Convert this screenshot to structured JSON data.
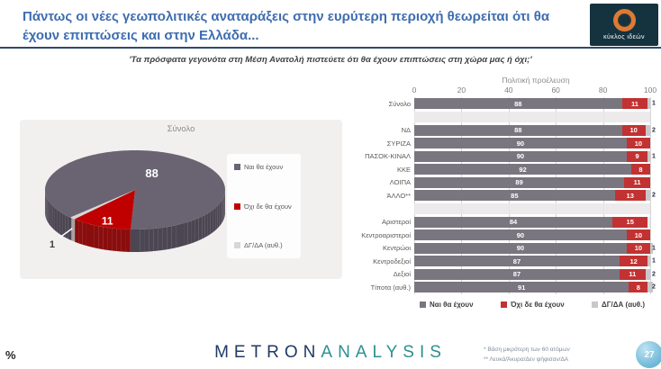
{
  "header": {
    "title": "Πάντως οι νέες γεωπολιτικές αναταράξεις στην ευρύτερη περιοχή θεωρείται ότι θα έχουν επιπτώσεις και στην Ελλάδα...",
    "logo": {
      "text": "κύκλος ιδεών"
    }
  },
  "question": "'Τα πρόσφατα γεγονότα στη Μέση Ανατολή πιστεύετε ότι θα έχουν επιπτώσεις στη χώρα μας ή όχι;'",
  "chart_data": [
    {
      "type": "pie",
      "style": "3d",
      "title": "Σύνολο",
      "labels": [
        "Ναι θα έχουν",
        "Όχι δε θα έχουν",
        "ΔΓ/ΔΑ (αυθ.)"
      ],
      "values": [
        88,
        11,
        1
      ],
      "colors": [
        "#6a6472",
        "#c00000",
        "#d8d6d6"
      ],
      "side_colors": [
        "#4c4653",
        "#8a0d0d",
        "#a8a4a4"
      ],
      "start_angle_cw_from_top": 226,
      "legend_position": "right"
    },
    {
      "type": "bar",
      "orientation": "horizontal-stacked",
      "title": "Πολιτική προέλευση",
      "x_ticks": [
        0,
        20,
        40,
        60,
        80,
        100
      ],
      "xlim": [
        0,
        100
      ],
      "legend": [
        "Ναι θα έχουν",
        "Όχι δε θα έχουν",
        "ΔΓ/ΔΑ (αυθ.)"
      ],
      "series_colors": [
        "#7a7680",
        "#c23232",
        "#c9c7cb"
      ],
      "rows": [
        {
          "label": "Σύνολο",
          "values": [
            88,
            11,
            1
          ],
          "gap_after": true
        },
        {
          "label": "ΝΔ",
          "values": [
            88,
            10,
            2
          ]
        },
        {
          "label": "ΣΥΡΙΖΑ",
          "values": [
            90,
            10,
            null
          ]
        },
        {
          "label": "ΠΑΣΟΚ-ΚΙΝΑΛ",
          "values": [
            90,
            9,
            1
          ]
        },
        {
          "label": "ΚΚΕ",
          "values": [
            92,
            8,
            null
          ]
        },
        {
          "label": "ΛΟΙΠΑ",
          "values": [
            89,
            11,
            null
          ]
        },
        {
          "label": "ΆΛΛΟ**",
          "values": [
            85,
            13,
            2
          ],
          "gap_after": true
        },
        {
          "label": "Αριστεροί",
          "values": [
            84,
            15,
            null
          ]
        },
        {
          "label": "Κεντροαριστεροί",
          "values": [
            90,
            10,
            null
          ]
        },
        {
          "label": "Κεντρώοι",
          "values": [
            90,
            10,
            1
          ]
        },
        {
          "label": "Κεντροδεξιοί",
          "values": [
            87,
            12,
            1
          ]
        },
        {
          "label": "Δεξιοί",
          "values": [
            87,
            11,
            2
          ]
        },
        {
          "label": "Τίποτα (αυθ.)",
          "values": [
            91,
            8,
            2
          ]
        }
      ]
    }
  ],
  "footer": {
    "percent_sign": "%",
    "brand": {
      "metron": "METRON",
      "analysis": "ANALYSIS"
    },
    "footnotes": [
      "* Βάση μικρότερη των 60 ατόμων",
      "** Λευκά/Άκυρα/Δεν ψήφισαν/ΔΑ"
    ],
    "page_number": "27"
  }
}
